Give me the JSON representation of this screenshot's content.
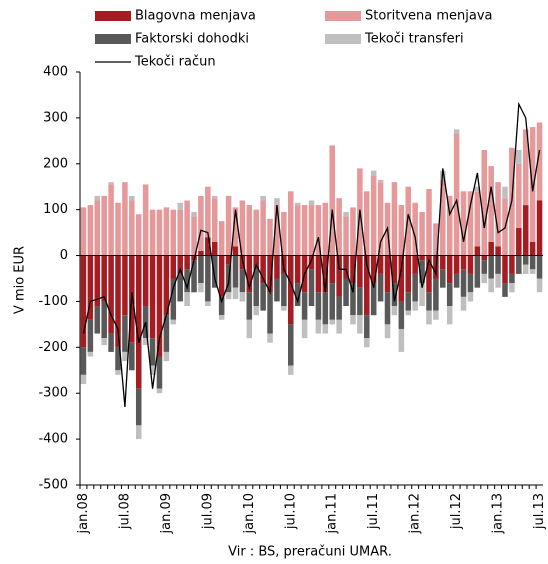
{
  "chart_data": {
    "type": "bar",
    "stacked": true,
    "y_label": "V mio EUR",
    "source": "Vir : BS, preračuni  UMAR.",
    "categories": [
      "jan.08",
      null,
      null,
      null,
      null,
      null,
      "jul.08",
      null,
      null,
      null,
      null,
      null,
      "jan.09",
      null,
      null,
      null,
      null,
      null,
      "jul.09",
      null,
      null,
      null,
      null,
      null,
      "jan.10",
      null,
      null,
      null,
      null,
      null,
      "jul.10",
      null,
      null,
      null,
      null,
      null,
      "jan.11",
      null,
      null,
      null,
      null,
      null,
      "jul.11",
      null,
      null,
      null,
      null,
      null,
      "jan.12",
      null,
      null,
      null,
      null,
      null,
      "jul.12",
      null,
      null,
      null,
      null,
      null,
      "jan.13",
      null,
      null,
      null,
      null,
      null,
      "jul.13"
    ],
    "ylim": [
      -500,
      400
    ],
    "yticks": [
      -500,
      -400,
      -300,
      -200,
      -100,
      0,
      100,
      200,
      300,
      400
    ],
    "series": [
      {
        "name": "Blagovna menjava",
        "color": "#a51d23",
        "values": [
          -200,
          -140,
          -110,
          -100,
          -170,
          -200,
          -130,
          -190,
          -290,
          -110,
          -180,
          -220,
          -130,
          -50,
          -40,
          -30,
          -10,
          10,
          40,
          30,
          -90,
          -20,
          20,
          -30,
          -80,
          -30,
          -60,
          -80,
          -50,
          -40,
          -150,
          -60,
          -80,
          -30,
          -80,
          -80,
          -60,
          -90,
          -50,
          -60,
          -70,
          -130,
          -60,
          -40,
          -80,
          -60,
          -100,
          -80,
          -40,
          -10,
          -80,
          -50,
          -30,
          -60,
          -40,
          -30,
          -40,
          20,
          -10,
          30,
          20,
          -60,
          -40,
          60,
          110,
          30,
          120
        ]
      },
      {
        "name": "Storitvena menjava",
        "color": "#e6999b",
        "values": [
          105,
          110,
          120,
          130,
          155,
          115,
          160,
          120,
          90,
          155,
          100,
          100,
          105,
          100,
          100,
          120,
          85,
          120,
          110,
          95,
          75,
          130,
          85,
          120,
          110,
          100,
          120,
          80,
          110,
          95,
          140,
          110,
          110,
          110,
          110,
          115,
          240,
          125,
          85,
          105,
          190,
          140,
          175,
          160,
          115,
          160,
          110,
          150,
          115,
          95,
          145,
          70,
          165,
          130,
          265,
          140,
          140,
          120,
          230,
          165,
          140,
          125,
          235,
          140,
          165,
          250,
          170
        ]
      },
      {
        "name": "Faktorski dohodki",
        "color": "#595959",
        "values": [
          -60,
          -70,
          -60,
          -80,
          -40,
          -50,
          -80,
          -60,
          -80,
          -70,
          -60,
          -70,
          -80,
          -90,
          -60,
          -50,
          -70,
          -60,
          -100,
          -70,
          -40,
          -60,
          -70,
          -50,
          -60,
          -80,
          -60,
          -90,
          -50,
          -70,
          -90,
          -50,
          -60,
          -80,
          -60,
          -70,
          -80,
          -50,
          -60,
          -70,
          -60,
          -50,
          -70,
          -60,
          -70,
          -50,
          -60,
          -40,
          -60,
          -50,
          -40,
          -70,
          -40,
          -50,
          -30,
          -60,
          -40,
          -70,
          -30,
          -50,
          -40,
          -30,
          -20,
          -40,
          -20,
          -30,
          -50
        ]
      },
      {
        "name": "Tekoči transferi",
        "color": "#bfbfbf",
        "values": [
          -20,
          -10,
          10,
          -15,
          5,
          -10,
          -20,
          10,
          -30,
          -15,
          -20,
          -10,
          -20,
          -10,
          15,
          -30,
          10,
          -20,
          -10,
          5,
          -10,
          -15,
          -25,
          -20,
          -40,
          -20,
          10,
          -20,
          15,
          -10,
          -20,
          5,
          -40,
          10,
          -30,
          -20,
          -10,
          -30,
          10,
          -20,
          -40,
          -20,
          10,
          5,
          -30,
          -20,
          -50,
          -10,
          -20,
          -50,
          -30,
          -20,
          20,
          -40,
          10,
          -30,
          -20,
          10,
          -20,
          -30,
          -30,
          25,
          -20,
          30,
          -20,
          -10,
          -30
        ]
      },
      {
        "name": "Tekoči račun",
        "type": "line",
        "color": "#000000",
        "values": [
          -170,
          -100,
          -95,
          -90,
          -130,
          -160,
          -330,
          -80,
          -190,
          -145,
          -290,
          -180,
          -130,
          -70,
          -30,
          -70,
          -10,
          55,
          50,
          -50,
          -100,
          -60,
          100,
          -10,
          -70,
          -20,
          -50,
          -80,
          110,
          -30,
          -60,
          -100,
          -40,
          -10,
          40,
          -80,
          100,
          -30,
          -30,
          -80,
          100,
          -20,
          -70,
          30,
          60,
          -100,
          -30,
          90,
          40,
          -70,
          -10,
          -40,
          190,
          90,
          120,
          30,
          110,
          180,
          60,
          150,
          50,
          60,
          120,
          330,
          300,
          140,
          230
        ]
      }
    ]
  }
}
